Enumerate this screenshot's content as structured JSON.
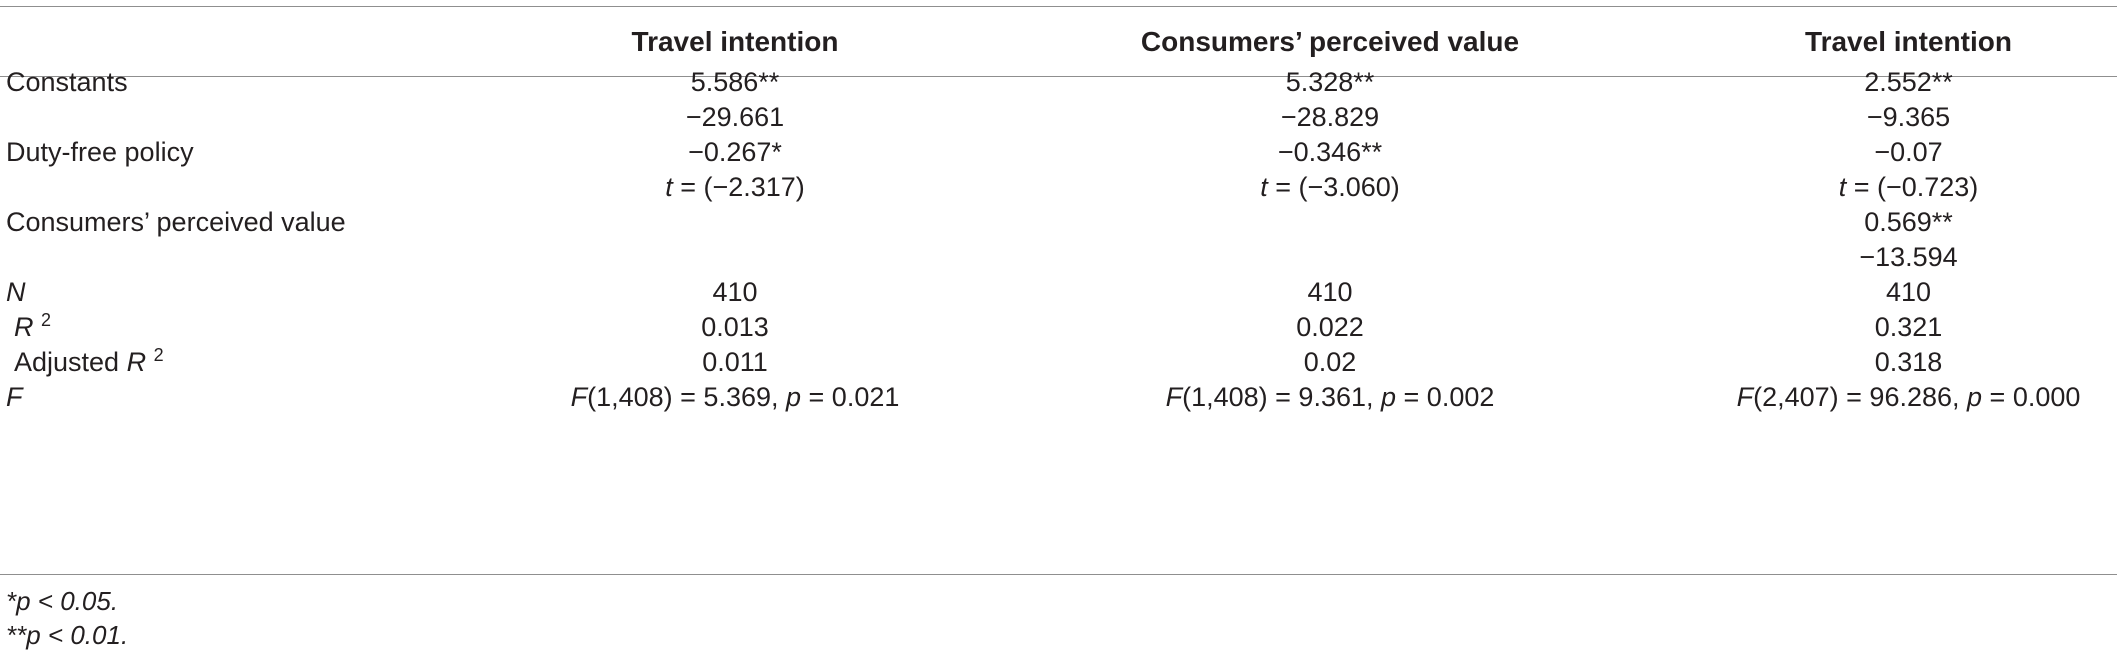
{
  "headers": {
    "col1": "Travel intention",
    "col2": "Consumers’ perceived value",
    "col3": "Travel intention"
  },
  "rows": [
    {
      "label": "Constants",
      "c1": "5.586**",
      "c2": "5.328**",
      "c3": "2.552**"
    },
    {
      "label": "",
      "c1": "−29.661",
      "c2": "−28.829",
      "c3": "−9.365"
    },
    {
      "label": "Duty-free policy",
      "c1": "−0.267*",
      "c2": "−0.346**",
      "c3": "−0.07"
    },
    {
      "label": "",
      "c1_prefix": "t",
      "c1": " = (−2.317)",
      "c2_prefix": "t",
      "c2": " = (−3.060)",
      "c3_prefix": "t",
      "c3": " = (−0.723)"
    },
    {
      "label": "Consumers’ perceived value",
      "c1": "",
      "c2": "",
      "c3": "0.569**"
    },
    {
      "label": "",
      "c1": "",
      "c2": "",
      "c3": "−13.594"
    },
    {
      "label": "N",
      "c1": "410",
      "c2": "410",
      "c3": "410"
    },
    {
      "label": "R",
      "label_sup": "2",
      "c1": "0.013",
      "c2": "0.022",
      "c3": "0.321"
    },
    {
      "label": "Adjusted ",
      "label_it": "R",
      "label_sup": "2",
      "c1": "0.011",
      "c2": "0.02",
      "c3": "0.318"
    },
    {
      "label": "F",
      "c1_a": "F",
      "c1_b": "(1,408) = 5.369, ",
      "c1_c": "p",
      "c1_d": " = 0.021",
      "c2_a": "F",
      "c2_b": "(1,408) = 9.361, ",
      "c2_c": "p",
      "c2_d": " = 0.002",
      "c3_a": "F",
      "c3_b": "(2,407) = 96.286, ",
      "c3_c": "p",
      "c3_d": " = 0.000"
    }
  ],
  "footnotes": {
    "f1_mark": "*",
    "f1_text": "p  < 0.05.",
    "f2_mark": "**",
    "f2_text": "p  < 0.01."
  }
}
